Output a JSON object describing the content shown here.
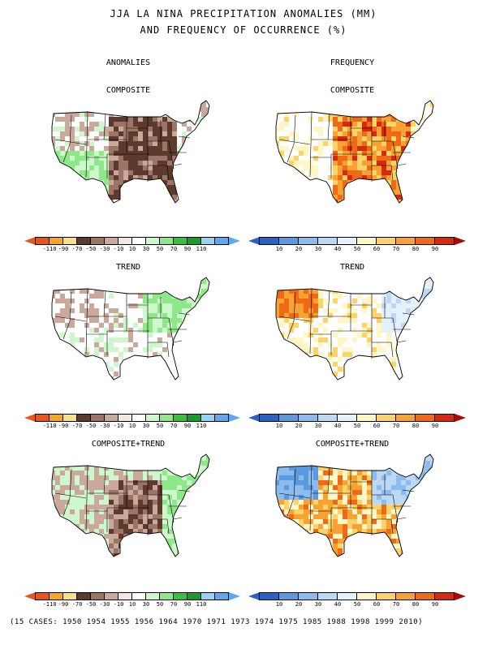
{
  "title": {
    "line1": "JJA LA NINA PRECIPITATION ANOMALIES (MM)",
    "line2": "AND FREQUENCY OF OCCURRENCE (%)"
  },
  "columns": {
    "left": "ANOMALIES",
    "right": "FREQUENCY"
  },
  "panels": {
    "anom_composite": "COMPOSITE",
    "anom_trend": "TREND",
    "anom_combined": "COMPOSITE+TREND",
    "freq_composite": "COMPOSITE",
    "freq_trend": "TREND",
    "freq_combined": "COMPOSITE+TREND"
  },
  "colorbars": {
    "anomaly": {
      "labels": [
        "-110",
        "-90",
        "-70",
        "-50",
        "-30",
        "-10",
        "10",
        "30",
        "50",
        "70",
        "90",
        "110"
      ],
      "colors": [
        "#e8541b",
        "#f5a623",
        "#f7e08a",
        "#5c3a2e",
        "#9c7566",
        "#c8a99c",
        "#f2e7e2",
        "#ffffff",
        "#cff7cc",
        "#8ee88a",
        "#3cbf3c",
        "#1a9c2a",
        "#9ad0f2",
        "#60a8ee"
      ],
      "left_arrow": "#e8541b",
      "right_arrow": "#60a8ee"
    },
    "frequency": {
      "labels": [
        "10",
        "20",
        "30",
        "40",
        "50",
        "60",
        "70",
        "80",
        "90"
      ],
      "colors": [
        "#2a62c8",
        "#5c9ae0",
        "#8cbcee",
        "#bcd8f4",
        "#e4f0fa",
        "#fff6c6",
        "#fcd36a",
        "#f7a233",
        "#ef6a16",
        "#d6290f"
      ],
      "left_arrow": "#2a62c8",
      "right_arrow": "#a80a0a"
    }
  },
  "footer": "(15 CASES:  1950 1954 1955 1956 1964 1970 1971 1973 1974 1975 1985 1988 1998 1999 2010)"
}
